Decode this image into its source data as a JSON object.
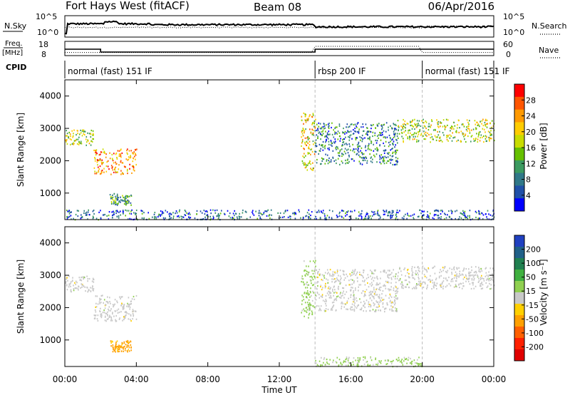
{
  "header": {
    "station": "Fort Hays West (fitACF)",
    "beam": "Beam 08",
    "date": "06/Apr/2016"
  },
  "top_panels": {
    "nsky_label": "N.Sky",
    "nsky_ticks": [
      "10^5",
      "10^0"
    ],
    "nsearch_label": "N.Search",
    "nsearch_ticks": [
      "10^5",
      "10^0"
    ],
    "freq_label_1": "Freq.",
    "freq_label_2": "[MHz]",
    "freq_ticks": [
      "18",
      "8"
    ],
    "nave_label": "Nave",
    "nave_ticks": [
      "60",
      "0"
    ],
    "cpid_label": "CPID",
    "cpid_segments": [
      {
        "label": "normal (fast) 151 IF",
        "start": 0,
        "end": 14
      },
      {
        "label": "rbsp 200 IF",
        "start": 14,
        "end": 20
      },
      {
        "label": "normal (fast) 151 IF",
        "start": 20,
        "end": 24
      }
    ],
    "freq_segments": [
      {
        "start": 0,
        "end": 2,
        "value": 12.5
      },
      {
        "start": 2,
        "end": 14,
        "value": 10.5
      },
      {
        "start": 14,
        "end": 24,
        "value": 12.5
      }
    ]
  },
  "axes": {
    "ylabel": "Slant Range [km]",
    "yticks": [
      "4000",
      "3000",
      "2000",
      "1000"
    ],
    "xticks": [
      "00:00",
      "04:00",
      "08:00",
      "12:00",
      "16:00",
      "20:00",
      "00:00"
    ],
    "xlabel": "Time UT"
  },
  "power_colorbar": {
    "label": "Power [dB]",
    "ticks": [
      "28",
      "24",
      "20",
      "16",
      "12",
      "8",
      "4"
    ],
    "colors": [
      "#ff0000",
      "#ff5500",
      "#ff9900",
      "#ffcc00",
      "#c8dc00",
      "#66c000",
      "#3c9a60",
      "#307888",
      "#2050a8",
      "#0000ff"
    ]
  },
  "velocity_colorbar": {
    "label": "Velocity [m s⁻¹]",
    "ticks": [
      "200",
      "100",
      "50",
      "15",
      "-15",
      "-50",
      "-100",
      "-200"
    ],
    "colors": [
      "#2040c0",
      "#206088",
      "#208050",
      "#40b040",
      "#90d050",
      "#c8c8c8",
      "#ffd000",
      "#ffa000",
      "#ff6000",
      "#ff2000",
      "#e00000"
    ]
  },
  "chart_data": [
    {
      "type": "heatmap",
      "title": "Fort Hays West (fitACF) Beam 08 06/Apr/2016",
      "quantity": "Power",
      "units": "dB",
      "xlabel": "Time UT",
      "ylabel": "Slant Range [km]",
      "xlim": [
        "00:00",
        "24:00"
      ],
      "ylim": [
        180,
        4500
      ],
      "clim": [
        0,
        30
      ],
      "regions": [
        {
          "t_start": 0.0,
          "t_end": 1.6,
          "range_start": 2500,
          "range_end": 3000,
          "value": 16
        },
        {
          "t_start": 1.6,
          "t_end": 4.0,
          "range_start": 1600,
          "range_end": 2400,
          "value": 22
        },
        {
          "t_start": 2.5,
          "t_end": 3.7,
          "range_start": 650,
          "range_end": 1000,
          "value": 10
        },
        {
          "t_start": 13.2,
          "t_end": 14.0,
          "range_start": 1700,
          "range_end": 3500,
          "value": 18
        },
        {
          "t_start": 14.0,
          "t_end": 18.6,
          "range_start": 1900,
          "range_end": 3200,
          "value": 8
        },
        {
          "t_start": 18.6,
          "t_end": 24.0,
          "range_start": 2600,
          "range_end": 3300,
          "value": 16
        },
        {
          "t_start": 0.0,
          "t_end": 24.0,
          "range_start": 200,
          "range_end": 500,
          "value": 6
        }
      ]
    },
    {
      "type": "heatmap",
      "quantity": "Velocity",
      "units": "m s^-1",
      "xlabel": "Time UT",
      "ylabel": "Slant Range [km]",
      "xlim": [
        "00:00",
        "24:00"
      ],
      "ylim": [
        180,
        4500
      ],
      "clim": [
        -200,
        200
      ],
      "regions": [
        {
          "t_start": 0.0,
          "t_end": 1.6,
          "range_start": 2500,
          "range_end": 3000,
          "value": 0
        },
        {
          "t_start": 1.6,
          "t_end": 4.0,
          "range_start": 1600,
          "range_end": 2400,
          "value": 0
        },
        {
          "t_start": 2.5,
          "t_end": 3.7,
          "range_start": 650,
          "range_end": 1000,
          "value": -70
        },
        {
          "t_start": 13.2,
          "t_end": 14.0,
          "range_start": 1700,
          "range_end": 3500,
          "value": 30
        },
        {
          "t_start": 14.0,
          "t_end": 18.6,
          "range_start": 1900,
          "range_end": 3200,
          "value": 0
        },
        {
          "t_start": 18.6,
          "t_end": 24.0,
          "range_start": 2600,
          "range_end": 3300,
          "value": 0
        },
        {
          "t_start": 14.0,
          "t_end": 20.0,
          "range_start": 200,
          "range_end": 500,
          "value": 30
        }
      ]
    }
  ]
}
